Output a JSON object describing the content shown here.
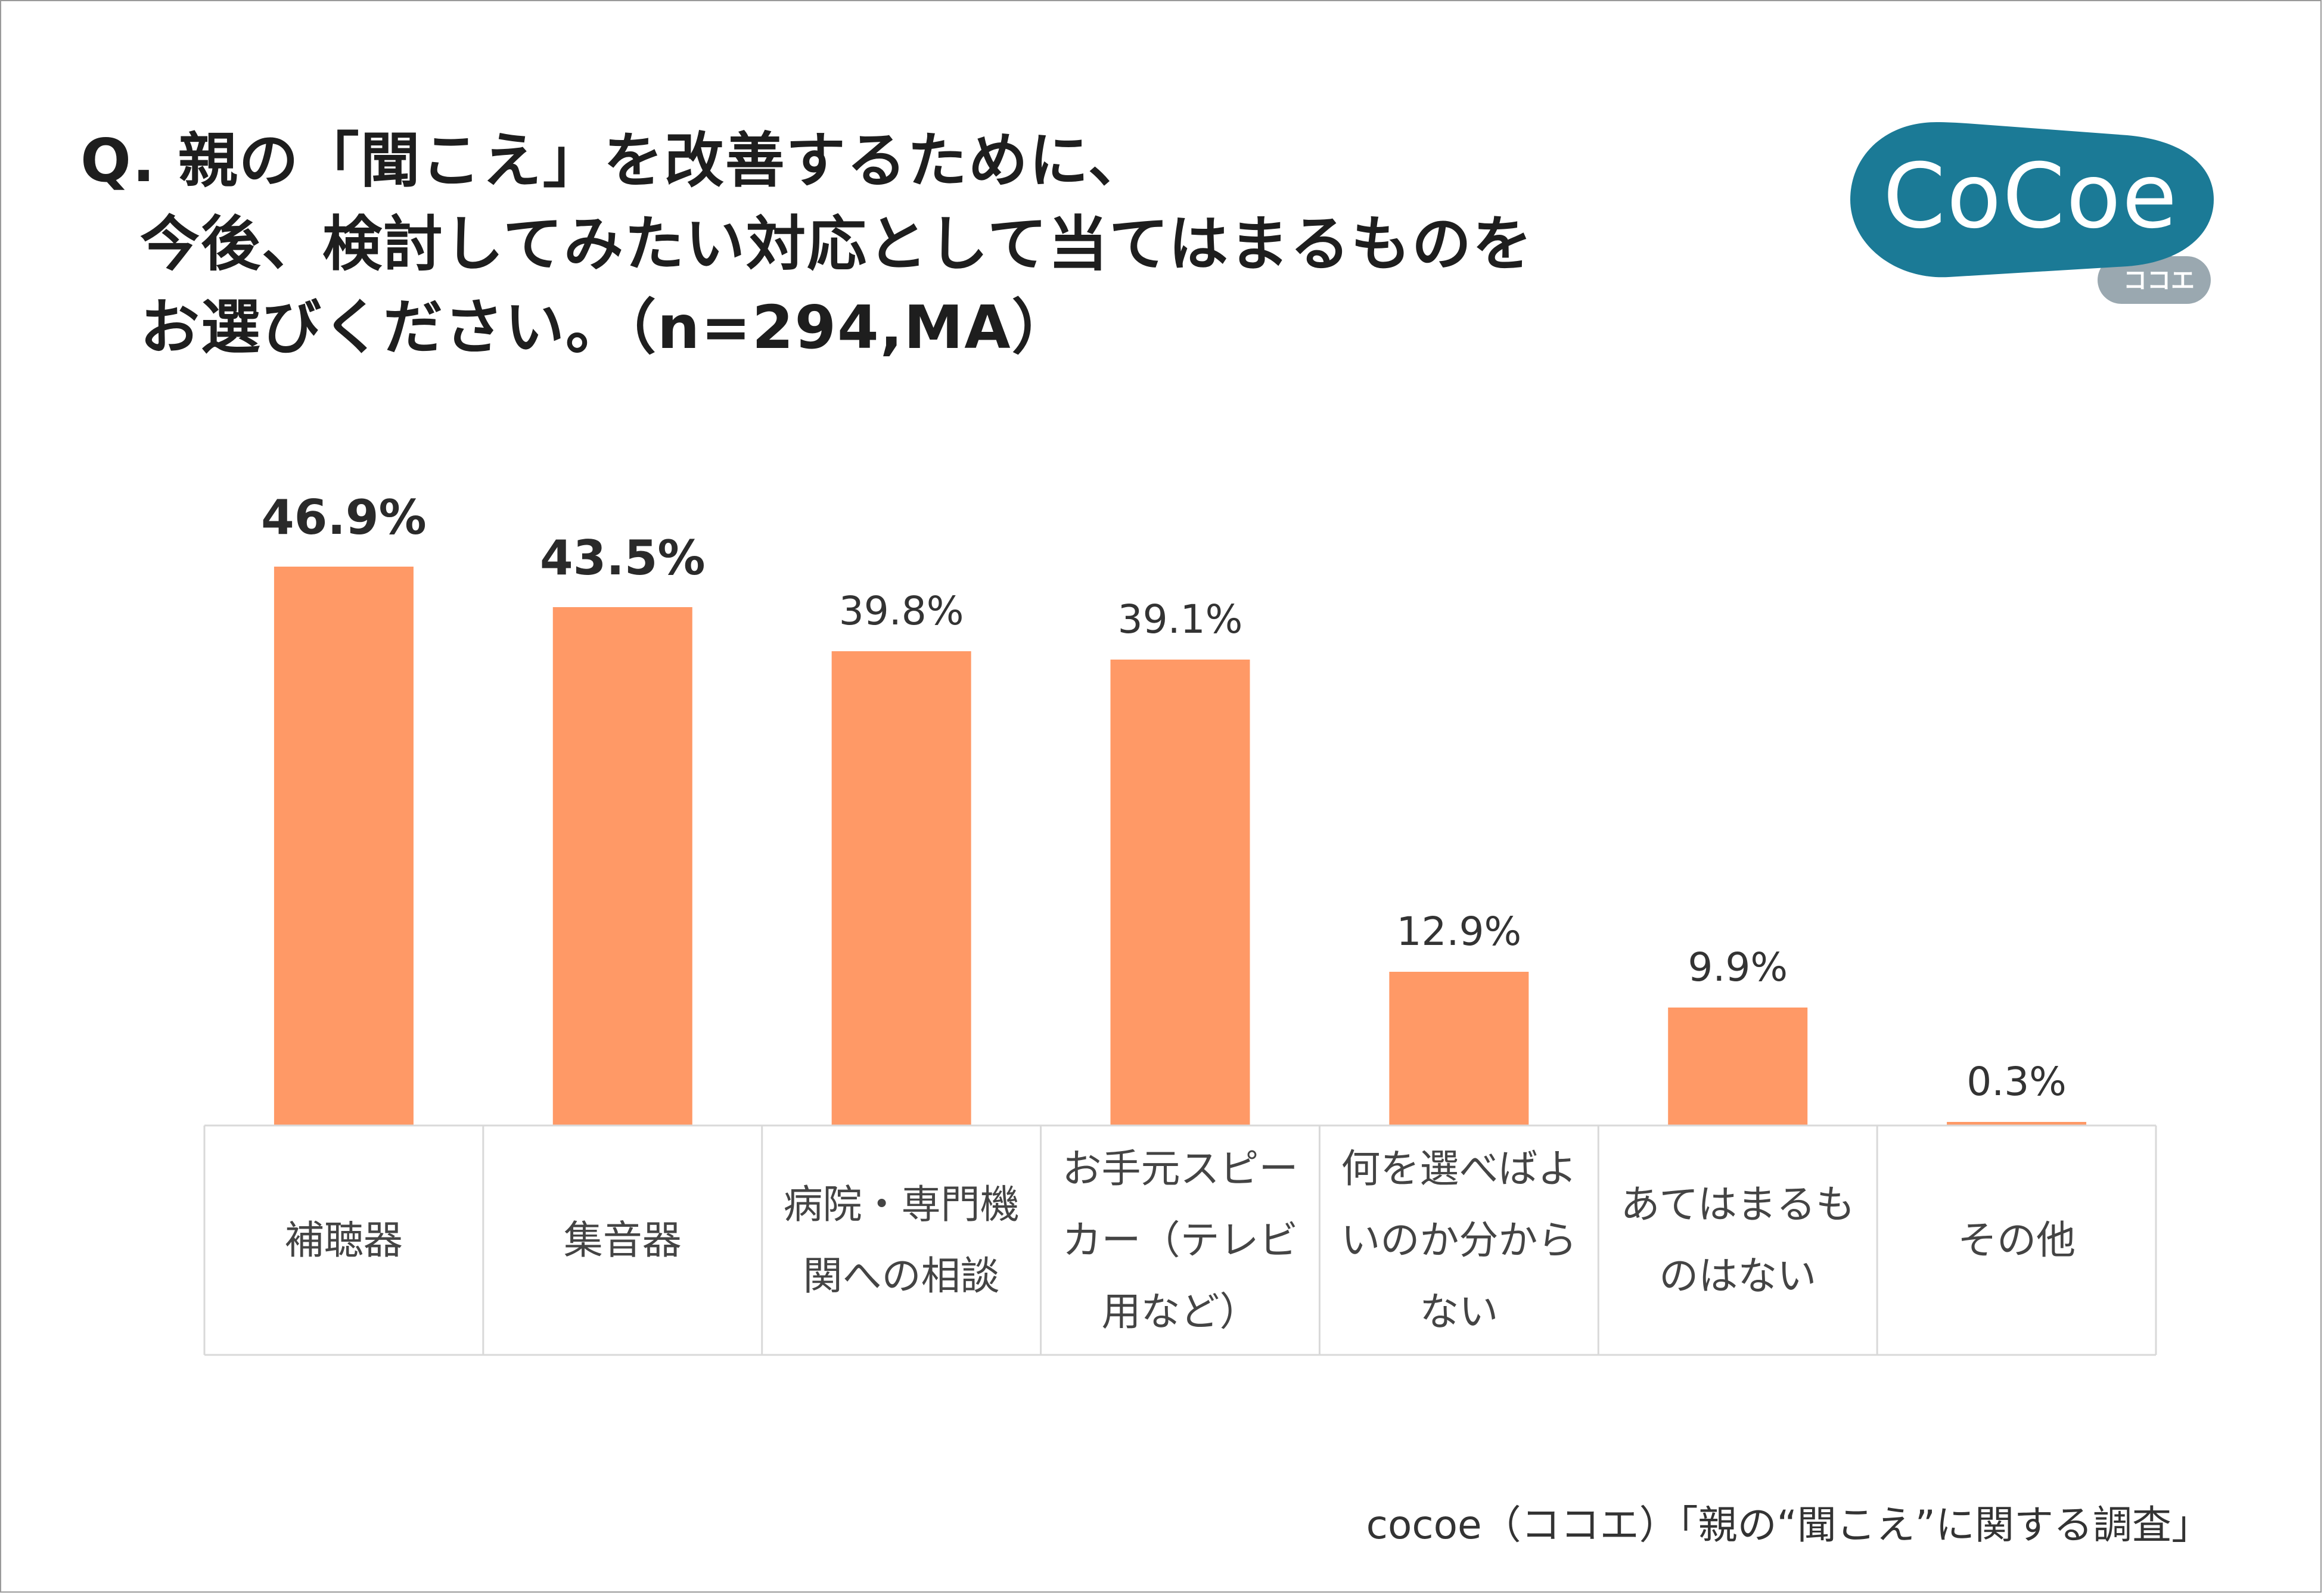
{
  "title": {
    "lines": [
      "Q. 親の「聞こえ」を改善するために、",
      "今後、検討してみたい対応として当てはまるものを",
      "お選びください。（n=294,MA）"
    ]
  },
  "logo": {
    "word": "CoCoe",
    "sub": "ココエ",
    "color": "#1b7a96",
    "sub_color": "#9aa8b0"
  },
  "chart_data": {
    "type": "bar",
    "categories": [
      "補聴器",
      "集音器",
      "病院・専門機関への相談",
      "お手元スピーカー（テレビ用など）",
      "何を選べばよいのか分からない",
      "あてはまるものはない",
      "その他"
    ],
    "category_lines": [
      [
        "補聴器"
      ],
      [
        "集音器"
      ],
      [
        "病院・専門機",
        "関への相談"
      ],
      [
        "お手元スピー",
        "カー（テレビ",
        "用など）"
      ],
      [
        "何を選べばよ",
        "いのか分から",
        "ない"
      ],
      [
        "あてはまるも",
        "のはない"
      ],
      [
        "その他"
      ]
    ],
    "values": [
      46.9,
      43.5,
      39.8,
      39.1,
      12.9,
      9.9,
      0.3
    ],
    "value_labels": [
      "46.9%",
      "43.5%",
      "39.8%",
      "39.1%",
      "12.9%",
      "9.9%",
      "0.3%"
    ],
    "highlight": [
      true,
      true,
      false,
      false,
      false,
      false,
      false
    ],
    "ylim": [
      0,
      50
    ],
    "bar_color": "#ff9966",
    "grid": false,
    "xlabel": "",
    "ylabel": ""
  },
  "source": "cocoe（ココエ）「親の“聞こえ”に関する調査」"
}
